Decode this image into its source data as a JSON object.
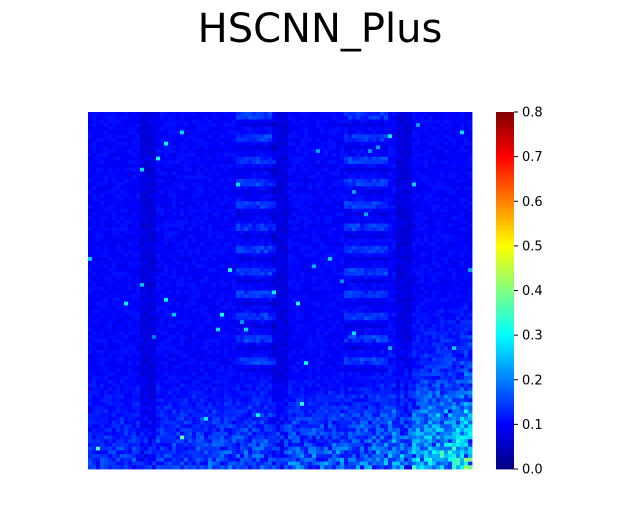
{
  "chart_data": {
    "type": "heatmap",
    "title": "HSCNN_Plus",
    "xlabel": "",
    "ylabel": "",
    "colormap": "jet",
    "value_range": [
      0.0,
      0.8
    ],
    "colorbar": {
      "ticks": [
        0.0,
        0.1,
        0.2,
        0.3,
        0.4,
        0.5,
        0.6,
        0.7,
        0.8
      ],
      "tick_labels": [
        "0.0",
        "0.1",
        "0.2",
        "0.3",
        "0.4",
        "0.5",
        "0.6",
        "0.7",
        "0.8"
      ]
    },
    "axes_visible": false,
    "dominant_value": 0.1,
    "peak_value_estimate": 0.3,
    "pattern": "mostly uniform low error (~0.08-0.12), with vertical bands of lower values, horizontal dashed streaks in two column regions, and elevated noisy values (~0.15-0.3) toward the bottom-right"
  }
}
